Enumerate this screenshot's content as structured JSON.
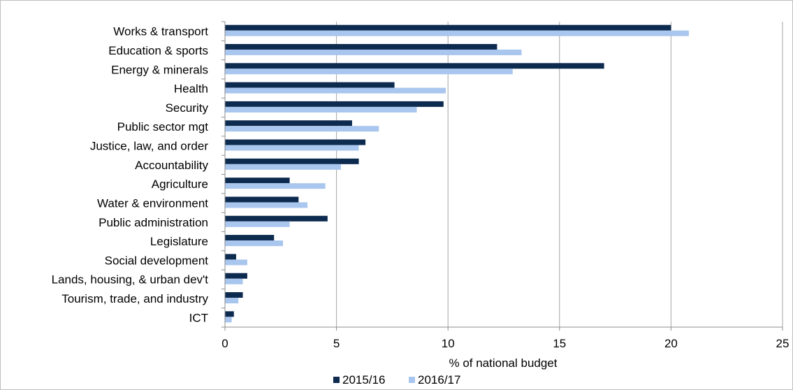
{
  "chart_data": {
    "type": "bar",
    "orientation": "horizontal",
    "categories": [
      "Works & transport",
      "Education & sports",
      "Energy & minerals",
      "Health",
      "Security",
      "Public sector mgt",
      "Justice, law, and order",
      "Accountability",
      "Agriculture",
      "Water & environment",
      "Public administration",
      "Legislature",
      "Social development",
      "Lands, housing, & urban dev't",
      "Tourism, trade, and industry",
      "ICT"
    ],
    "series": [
      {
        "name": "2015/16",
        "color": "#0d2a4f",
        "values": [
          20.0,
          12.2,
          17.0,
          7.6,
          9.8,
          5.7,
          6.3,
          6.0,
          2.9,
          3.3,
          4.6,
          2.2,
          0.5,
          1.0,
          0.8,
          0.4
        ]
      },
      {
        "name": "2016/17",
        "color": "#a9c6ee",
        "values": [
          20.8,
          13.3,
          12.9,
          9.9,
          8.6,
          6.9,
          6.0,
          5.2,
          4.5,
          3.7,
          2.9,
          2.6,
          1.0,
          0.8,
          0.6,
          0.3
        ]
      }
    ],
    "xlabel": "% of national budget",
    "ylabel": "",
    "title": "",
    "xlim": [
      0,
      25
    ],
    "xticks": [
      "0",
      "5",
      "10",
      "15",
      "20",
      "25"
    ],
    "grid": "vertical",
    "legend_position": "bottom"
  }
}
